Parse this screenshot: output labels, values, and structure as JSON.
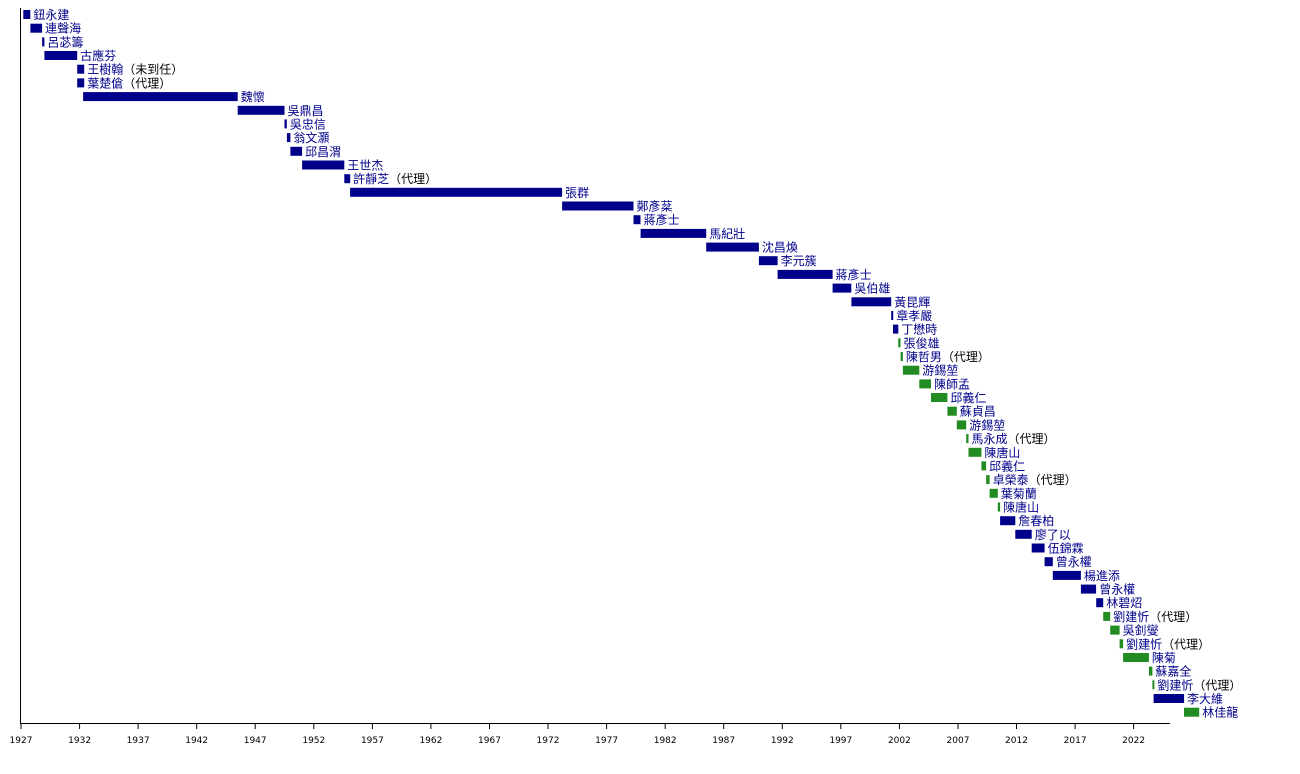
{
  "chart_data": {
    "type": "timeline",
    "title": "",
    "xlabel": "",
    "ylabel": "",
    "xlim": [
      1927,
      2024
    ],
    "x_ticks": [
      1927,
      1932,
      1937,
      1942,
      1947,
      1952,
      1957,
      1962,
      1967,
      1972,
      1977,
      1982,
      1987,
      1992,
      1997,
      2002,
      2007,
      2012,
      2017,
      2022
    ],
    "grid": false,
    "legend": "none",
    "colors": {
      "blue": "#00008b",
      "green": "#228b22",
      "label_blue": "#00008b",
      "label_gray": "#000000"
    },
    "entries": [
      {
        "name": "鈕永建",
        "note": "",
        "start": 1927.2,
        "end": 1927.8,
        "color": "blue"
      },
      {
        "name": "連聲海",
        "note": "",
        "start": 1927.8,
        "end": 1928.8,
        "color": "blue"
      },
      {
        "name": "呂苾籌",
        "note": "",
        "start": 1928.8,
        "end": 1929.0,
        "color": "blue"
      },
      {
        "name": "古應芬",
        "note": "",
        "start": 1929.0,
        "end": 1931.8,
        "color": "blue"
      },
      {
        "name": "王樹翰",
        "note": "（未到任）",
        "start": 1931.8,
        "end": 1932.4,
        "color": "blue"
      },
      {
        "name": "葉楚傖",
        "note": "（代理）",
        "start": 1931.8,
        "end": 1932.4,
        "color": "blue"
      },
      {
        "name": "魏懷",
        "note": "",
        "start": 1932.3,
        "end": 1945.5,
        "color": "blue"
      },
      {
        "name": "吳鼎昌",
        "note": "",
        "start": 1945.5,
        "end": 1949.5,
        "color": "blue"
      },
      {
        "name": "吳忠信",
        "note": "",
        "start": 1949.5,
        "end": 1949.7,
        "color": "blue"
      },
      {
        "name": "翁文灝",
        "note": "",
        "start": 1949.7,
        "end": 1950.0,
        "color": "blue"
      },
      {
        "name": "邱昌渭",
        "note": "",
        "start": 1950.0,
        "end": 1951.0,
        "color": "blue"
      },
      {
        "name": "王世杰",
        "note": "",
        "start": 1951.0,
        "end": 1954.6,
        "color": "blue"
      },
      {
        "name": "許靜芝",
        "note": "（代理）",
        "start": 1954.6,
        "end": 1955.1,
        "color": "blue"
      },
      {
        "name": "張群",
        "note": "",
        "start": 1955.1,
        "end": 1973.2,
        "color": "blue"
      },
      {
        "name": "鄭彥棻",
        "note": "",
        "start": 1973.2,
        "end": 1979.3,
        "color": "blue"
      },
      {
        "name": "蔣彥士",
        "note": "",
        "start": 1979.3,
        "end": 1979.9,
        "color": "blue"
      },
      {
        "name": "馬紀壯",
        "note": "",
        "start": 1979.9,
        "end": 1985.5,
        "color": "blue"
      },
      {
        "name": "沈昌煥",
        "note": "",
        "start": 1985.5,
        "end": 1990.0,
        "color": "blue"
      },
      {
        "name": "李元簇",
        "note": "",
        "start": 1990.0,
        "end": 1991.6,
        "color": "blue"
      },
      {
        "name": "蔣彥士",
        "note": "",
        "start": 1991.6,
        "end": 1996.3,
        "color": "blue"
      },
      {
        "name": "吳伯雄",
        "note": "",
        "start": 1996.3,
        "end": 1997.9,
        "color": "blue"
      },
      {
        "name": "黃昆輝",
        "note": "",
        "start": 1997.9,
        "end": 2001.3,
        "color": "blue"
      },
      {
        "name": "章孝嚴",
        "note": "",
        "start": 2001.3,
        "end": 2001.45,
        "color": "blue"
      },
      {
        "name": "丁懋時",
        "note": "",
        "start": 2001.45,
        "end": 2001.9,
        "color": "blue"
      },
      {
        "name": "張俊雄",
        "note": "",
        "start": 2001.9,
        "end": 2002.1,
        "color": "green"
      },
      {
        "name": "陳哲男",
        "note": "（代理）",
        "start": 2002.1,
        "end": 2002.3,
        "color": "green"
      },
      {
        "name": "游錫堃",
        "note": "",
        "start": 2002.3,
        "end": 2003.7,
        "color": "green"
      },
      {
        "name": "陳師孟",
        "note": "",
        "start": 2003.7,
        "end": 2004.7,
        "color": "green"
      },
      {
        "name": "邱義仁",
        "note": "",
        "start": 2004.7,
        "end": 2006.1,
        "color": "green"
      },
      {
        "name": "蘇貞昌",
        "note": "",
        "start": 2006.1,
        "end": 2006.9,
        "color": "green"
      },
      {
        "name": "游錫堃",
        "note": "",
        "start": 2006.9,
        "end": 2007.7,
        "color": "green"
      },
      {
        "name": "馬永成",
        "note": "（代理）",
        "start": 2007.7,
        "end": 2007.9,
        "color": "green"
      },
      {
        "name": "陳唐山",
        "note": "",
        "start": 2007.9,
        "end": 2009.0,
        "color": "green"
      },
      {
        "name": "邱義仁",
        "note": "",
        "start": 2009.0,
        "end": 2009.4,
        "color": "green"
      },
      {
        "name": "卓榮泰",
        "note": "（代理）",
        "start": 2009.4,
        "end": 2009.7,
        "color": "green"
      },
      {
        "name": "葉菊蘭",
        "note": "",
        "start": 2009.7,
        "end": 2010.4,
        "color": "green"
      },
      {
        "name": "陳唐山",
        "note": "",
        "start": 2010.4,
        "end": 2010.6,
        "color": "green"
      },
      {
        "name": "詹春柏",
        "note": "",
        "start": 2010.6,
        "end": 2011.9,
        "color": "blue"
      },
      {
        "name": "廖了以",
        "note": "",
        "start": 2011.9,
        "end": 2013.3,
        "color": "blue"
      },
      {
        "name": "伍錦霖",
        "note": "",
        "start": 2013.3,
        "end": 2014.4,
        "color": "blue"
      },
      {
        "name": "曾永權",
        "note": "",
        "start": 2014.4,
        "end": 2015.1,
        "color": "blue"
      },
      {
        "name": "楊進添",
        "note": "",
        "start": 2015.1,
        "end": 2017.5,
        "color": "blue"
      },
      {
        "name": "曾永權",
        "note": "",
        "start": 2017.5,
        "end": 2018.8,
        "color": "blue"
      },
      {
        "name": "林碧炤",
        "note": "",
        "start": 2018.8,
        "end": 2019.4,
        "color": "blue"
      },
      {
        "name": "劉建忻",
        "note": "（代理）",
        "start": 2019.4,
        "end": 2020.0,
        "color": "green"
      },
      {
        "name": "吳釗燮",
        "note": "",
        "start": 2020.0,
        "end": 2020.8,
        "color": "green"
      },
      {
        "name": "劉建忻",
        "note": "（代理）",
        "start": 2020.8,
        "end": 2021.1,
        "color": "green"
      },
      {
        "name": "陳菊",
        "note": "",
        "start": 2021.1,
        "end": 2023.3,
        "color": "green"
      },
      {
        "name": "蘇嘉全",
        "note": "",
        "start": 2023.3,
        "end": 2023.6,
        "color": "green"
      },
      {
        "name": "劉建忻",
        "note": "（代理）",
        "start": 2023.6,
        "end": 2023.75,
        "color": "green"
      },
      {
        "name": "李大維",
        "note": "",
        "start": 2023.7,
        "end": 2026.3,
        "color": "blue"
      },
      {
        "name": "林佳龍",
        "note": "",
        "start": 2026.3,
        "end": 2027.6,
        "color": "green"
      }
    ]
  }
}
